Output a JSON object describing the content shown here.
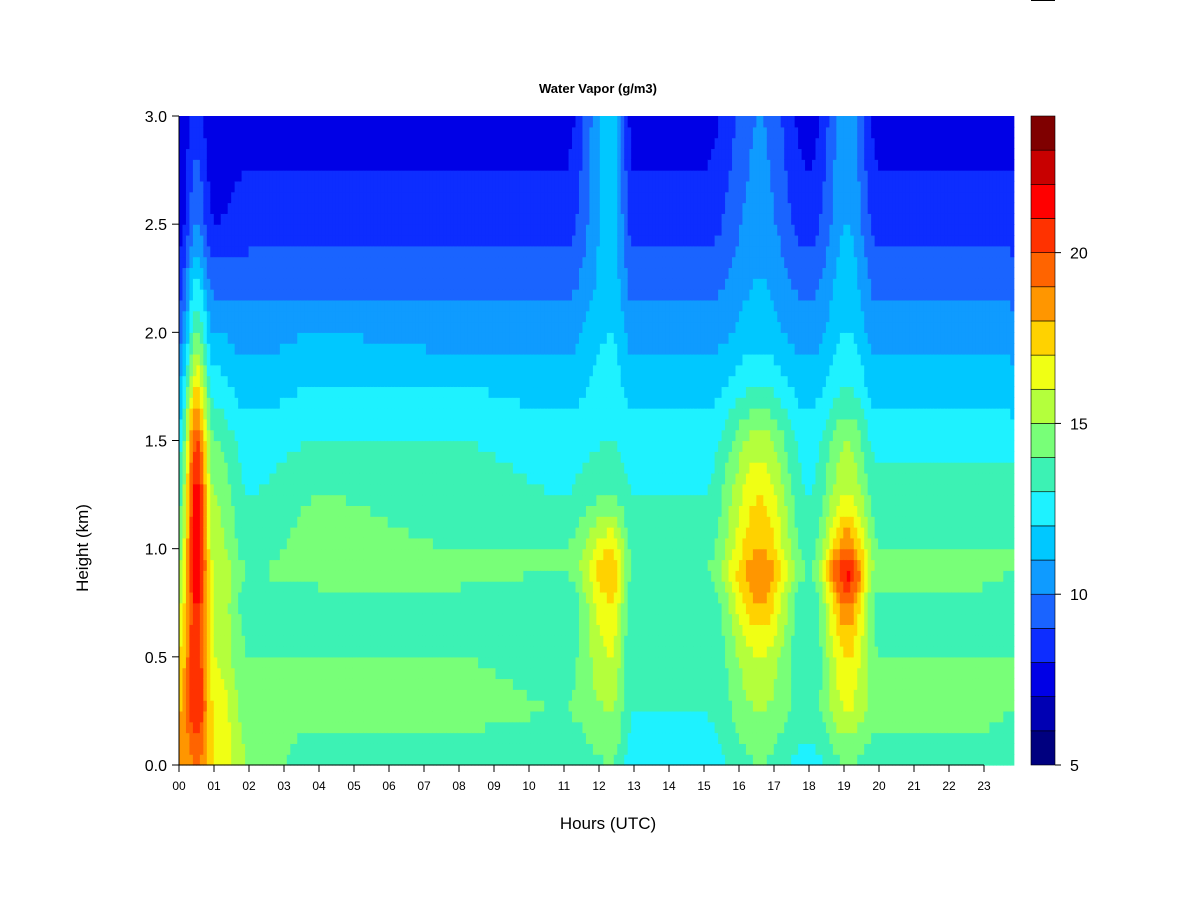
{
  "chart_data": {
    "type": "heatmap",
    "title": "Water Vapor (g/m3)",
    "xlabel": "Hours (UTC)",
    "ylabel": "Height (km)",
    "xlim": [
      0,
      24
    ],
    "ylim": [
      0.0,
      3.0
    ],
    "x_tick_labels": [
      "00",
      "01",
      "02",
      "03",
      "04",
      "05",
      "06",
      "07",
      "08",
      "09",
      "10",
      "11",
      "12",
      "13",
      "14",
      "15",
      "16",
      "17",
      "18",
      "19",
      "20",
      "21",
      "22",
      "23"
    ],
    "y_tick_labels": [
      "0.0",
      "0.5",
      "1.0",
      "1.5",
      "2.0",
      "2.5",
      "3.0"
    ],
    "y_ticks": [
      0.0,
      0.5,
      1.0,
      1.5,
      2.0,
      2.5,
      3.0
    ],
    "grid": false,
    "colorbar": {
      "range": [
        5,
        24
      ],
      "tick_values": [
        5,
        10,
        15,
        20
      ],
      "tick_labels": [
        "5",
        "10",
        "15",
        "20"
      ],
      "colors": [
        "#00007f",
        "#0000b3",
        "#0000e6",
        "#0d2dff",
        "#1a64ff",
        "#0f9bff",
        "#00c8ff",
        "#1ef2ff",
        "#3cf2b4",
        "#78ff78",
        "#b4ff3c",
        "#f0ff14",
        "#ffd200",
        "#ff9600",
        "#ff6400",
        "#ff3200",
        "#ff0000",
        "#c80000",
        "#7f0000"
      ]
    },
    "column_profiles": [
      {
        "hour": 0.0,
        "values": [
          18,
          18,
          17,
          16,
          15,
          14.5,
          13.5,
          12.5,
          11,
          9.5,
          8.5,
          7.5,
          7
        ]
      },
      {
        "hour": 0.5,
        "values": [
          19,
          21,
          21,
          21,
          22,
          22,
          21.5,
          20,
          17,
          14,
          12,
          10,
          8.5
        ]
      },
      {
        "hour": 1.0,
        "values": [
          17,
          17,
          16,
          16,
          16,
          15.5,
          15,
          14,
          12.5,
          11,
          9.5,
          8,
          7
        ]
      },
      {
        "hour": 2.0,
        "values": [
          15,
          14.5,
          14,
          13.5,
          14,
          13.5,
          13,
          12.5,
          11.5,
          10.5,
          9.5,
          8.5,
          7.5
        ]
      },
      {
        "hour": 4.0,
        "values": [
          13,
          14.5,
          14,
          13.5,
          14.5,
          14.5,
          14,
          13,
          12,
          11,
          9.5,
          8.5,
          7.5
        ]
      },
      {
        "hour": 8.0,
        "values": [
          13,
          14.5,
          14,
          13.5,
          14.5,
          14,
          13.5,
          13,
          12,
          10.5,
          9.5,
          8.5,
          7.5
        ]
      },
      {
        "hour": 11.0,
        "values": [
          13,
          14,
          13.5,
          13,
          14,
          14,
          13,
          12.5,
          11.5,
          10.5,
          9.5,
          8.5,
          7.5
        ]
      },
      {
        "hour": 12.35,
        "values": [
          14,
          15,
          16,
          17,
          18,
          17,
          14,
          13,
          12.5,
          12,
          11.5,
          11.5,
          11.5
        ]
      },
      {
        "hour": 13.0,
        "values": [
          12.5,
          13,
          13,
          13,
          14,
          13.5,
          13,
          12.5,
          11.5,
          10.5,
          9.5,
          8.5,
          7.5
        ]
      },
      {
        "hour": 15.0,
        "values": [
          12.5,
          13,
          13,
          13,
          14,
          13.5,
          13,
          12.5,
          11.5,
          10.5,
          9.5,
          8.5,
          7.5
        ]
      },
      {
        "hour": 16.6,
        "values": [
          14,
          15,
          16,
          18,
          19,
          18,
          17,
          15.5,
          13,
          11.5,
          11,
          10.5,
          10
        ]
      },
      {
        "hour": 18.0,
        "values": [
          12.5,
          13.5,
          13,
          13,
          14,
          13.5,
          13,
          12.5,
          11.5,
          10.5,
          9.5,
          8.5,
          7.5
        ]
      },
      {
        "hour": 19.1,
        "values": [
          14,
          16,
          17,
          19,
          21.5,
          19,
          16,
          15,
          13,
          12,
          11.5,
          11,
          10.5
        ]
      },
      {
        "hour": 20.0,
        "values": [
          13,
          14.5,
          14,
          13.5,
          14.5,
          14,
          13.5,
          12.5,
          11.5,
          10.5,
          9.5,
          8.5,
          7.5
        ]
      },
      {
        "hour": 23.0,
        "values": [
          13,
          14.5,
          14,
          13.5,
          14.5,
          14,
          13.5,
          12.5,
          11.5,
          10.5,
          9.5,
          8.5,
          7.5
        ]
      },
      {
        "hour": 23.8,
        "values": [
          13,
          14,
          14,
          13.5,
          14,
          14,
          13.5,
          12.5,
          11.5,
          10.5,
          9.5,
          8.5,
          7.5
        ]
      }
    ],
    "profile_heights_km": [
      0.0,
      0.25,
      0.5,
      0.75,
      0.9,
      1.0,
      1.25,
      1.5,
      1.75,
      2.0,
      2.25,
      2.5,
      3.0
    ]
  }
}
